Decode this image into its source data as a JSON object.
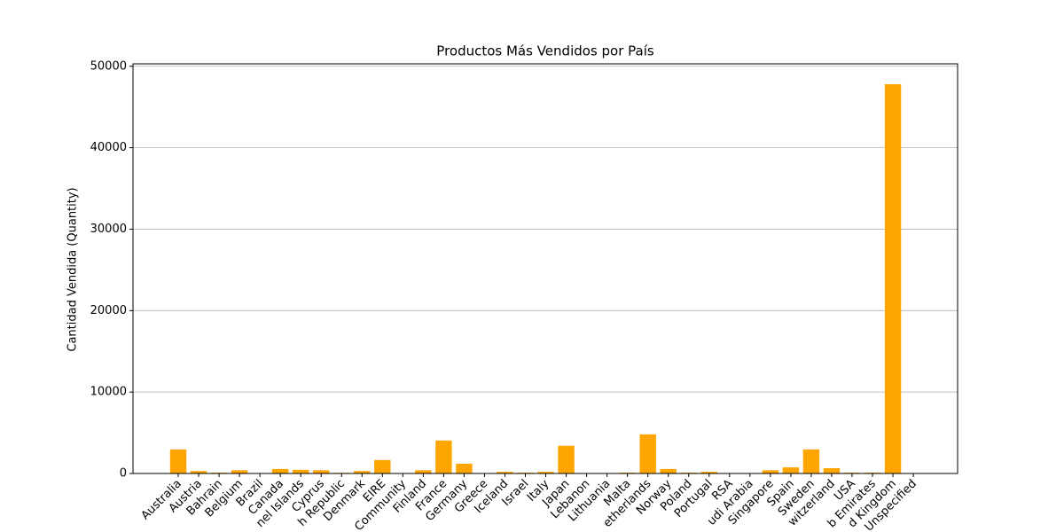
{
  "chart_data": {
    "type": "bar",
    "title": "Productos Más Vendidos por País",
    "y_label": "Cantidad Vendida (Quantity)",
    "categories": [
      "Australia",
      "Austria",
      "Bahrain",
      "Belgium",
      "Brazil",
      "Canada",
      "nel Islands",
      "Cyprus",
      "h Republic",
      "Denmark",
      "EIRE",
      "Community",
      "Finland",
      "France",
      "Germany",
      "Greece",
      "Iceland",
      "Israel",
      "Italy",
      "Japan",
      "Lebanon",
      "Lithuania",
      "Malta",
      "etherlands",
      "Norway",
      "Poland",
      "Portugal",
      "RSA",
      "udi Arabia",
      "Singapore",
      "Spain",
      "Sweden",
      "witzerland",
      "USA",
      "b Emirates",
      "d Kingdom",
      "Unspecified"
    ],
    "values": [
      2950,
      300,
      100,
      400,
      30,
      550,
      450,
      400,
      80,
      300,
      1650,
      20,
      400,
      4050,
      1200,
      10,
      200,
      100,
      200,
      3400,
      10,
      10,
      100,
      4800,
      550,
      100,
      200,
      10,
      5,
      400,
      750,
      2950,
      650,
      100,
      100,
      47800,
      20
    ],
    "color": "#ffa500",
    "ylim": [
      0,
      50300
    ],
    "yticks": [
      0,
      10000,
      20000,
      30000,
      40000,
      50000
    ],
    "grid": true
  }
}
